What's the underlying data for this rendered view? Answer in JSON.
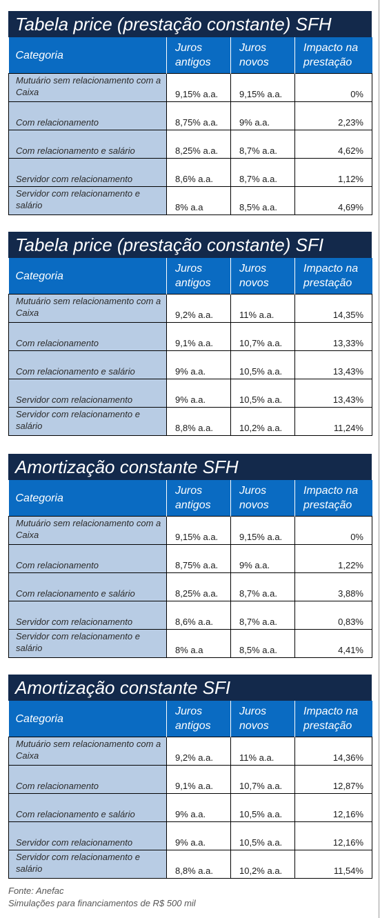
{
  "header": {
    "categoria": "Categoria",
    "juros_antigos": "Juros antigos",
    "juros_novos": "Juros novos",
    "impacto": "Impacto na prestação"
  },
  "tables": [
    {
      "title": "Tabela price (prestação constante) SFH",
      "rows": [
        {
          "categoria": "Mutuário sem relacionamento com a Caixa",
          "antigos": "9,15% a.a.",
          "novos": "9,15% a.a.",
          "impacto": "0%"
        },
        {
          "categoria": "Com relacionamento",
          "antigos": "8,75% a.a.",
          "novos": "9% a.a.",
          "impacto": "2,23%"
        },
        {
          "categoria": "Com relacionamento e salário",
          "antigos": "8,25% a.a.",
          "novos": "8,7% a.a.",
          "impacto": "4,62%"
        },
        {
          "categoria": "Servidor com relacionamento",
          "antigos": "8,6% a.a.",
          "novos": "8,7% a.a.",
          "impacto": "1,12%"
        },
        {
          "categoria": "Servidor com relacionamento e salário",
          "antigos": "8% a.a",
          "novos": "8,5% a.a.",
          "impacto": "4,69%"
        }
      ]
    },
    {
      "title": "Tabela price (prestação constante) SFI",
      "rows": [
        {
          "categoria": "Mutuário sem relacionamento com a Caixa",
          "antigos": "9,2% a.a.",
          "novos": "11% a.a.",
          "impacto": "14,35%"
        },
        {
          "categoria": "Com relacionamento",
          "antigos": "9,1% a.a.",
          "novos": "10,7% a.a.",
          "impacto": "13,33%"
        },
        {
          "categoria": "Com relacionamento e salário",
          "antigos": "9% a.a.",
          "novos": "10,5% a.a.",
          "impacto": "13,43%"
        },
        {
          "categoria": "Servidor com relacionamento",
          "antigos": "9% a.a.",
          "novos": "10,5% a.a.",
          "impacto": "13,43%"
        },
        {
          "categoria": "Servidor com relacionamento e salário",
          "antigos": "8,8% a.a.",
          "novos": "10,2% a.a.",
          "impacto": "11,24%"
        }
      ]
    },
    {
      "title": "Amortização constante SFH",
      "rows": [
        {
          "categoria": "Mutuário sem relacionamento com a Caixa",
          "antigos": "9,15% a.a.",
          "novos": "9,15% a.a.",
          "impacto": "0%"
        },
        {
          "categoria": "Com relacionamento",
          "antigos": "8,75% a.a.",
          "novos": "9% a.a.",
          "impacto": "1,22%"
        },
        {
          "categoria": "Com relacionamento e salário",
          "antigos": "8,25% a.a.",
          "novos": "8,7% a.a.",
          "impacto": "3,88%"
        },
        {
          "categoria": "Servidor com relacionamento",
          "antigos": "8,6% a.a.",
          "novos": "8,7% a.a.",
          "impacto": "0,83%"
        },
        {
          "categoria": "Servidor com relacionamento e salário",
          "antigos": "8% a.a",
          "novos": "8,5% a.a.",
          "impacto": "4,41%"
        }
      ]
    },
    {
      "title": "Amortização constante SFI",
      "rows": [
        {
          "categoria": "Mutuário sem relacionamento com a Caixa",
          "antigos": "9,2% a.a.",
          "novos": "11% a.a.",
          "impacto": "14,36%"
        },
        {
          "categoria": "Com relacionamento",
          "antigos": "9,1% a.a.",
          "novos": "10,7% a.a.",
          "impacto": "12,87%"
        },
        {
          "categoria": "Com relacionamento e salário",
          "antigos": "9% a.a.",
          "novos": "10,5% a.a.",
          "impacto": "12,16%"
        },
        {
          "categoria": "Servidor com relacionamento",
          "antigos": "9% a.a.",
          "novos": "10,5% a.a.",
          "impacto": "12,16%"
        },
        {
          "categoria": "Servidor com relacionamento e salário",
          "antigos": "8,8% a.a.",
          "novos": "10,2% a.a.",
          "impacto": "11,54%"
        }
      ]
    }
  ],
  "footer": {
    "source": "Fonte: Anefac",
    "note": "Simulações para financiamentos de R$ 500 mil"
  },
  "colors": {
    "title_bg": "#13294b",
    "header_bg": "#0a6bc2",
    "category_bg": "#b8cce4"
  }
}
